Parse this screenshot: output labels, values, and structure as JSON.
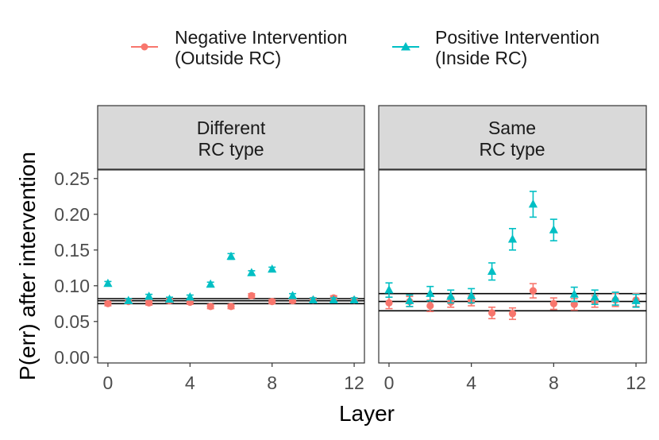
{
  "chart_data": {
    "type": "scatter",
    "xlabel": "Layer",
    "ylabel": "P(err) after intervention",
    "xlim": [
      -0.5,
      12.5
    ],
    "ylim": [
      -0.008,
      0.262
    ],
    "x_ticks": [
      0,
      4,
      8,
      12
    ],
    "x_tick_labels": [
      "0",
      "4",
      "8",
      "12"
    ],
    "y_ticks": [
      0.0,
      0.05,
      0.1,
      0.15,
      0.2,
      0.25
    ],
    "y_tick_labels": [
      "0.00",
      "0.05",
      "0.10",
      "0.15",
      "0.20",
      "0.25"
    ],
    "legend": {
      "position": "top",
      "entries": [
        {
          "line1": "Negative Intervention",
          "line2": "(Outside RC)",
          "marker": "circle",
          "color": "#F8766D"
        },
        {
          "line1": "Positive Intervention",
          "line2": "(Inside RC)",
          "marker": "triangle",
          "color": "#00BFC4"
        }
      ]
    },
    "facets": [
      {
        "title_line1": "Different",
        "title_line2": "RC type",
        "hlines": [
          0.075,
          0.079,
          0.082
        ],
        "series": [
          {
            "name": "Negative Intervention (Outside RC)",
            "x": [
              0,
              1,
              2,
              3,
              4,
              5,
              6,
              7,
              8,
              9,
              10,
              11,
              12
            ],
            "y": [
              0.075,
              0.078,
              0.076,
              0.079,
              0.077,
              0.071,
              0.071,
              0.086,
              0.078,
              0.079,
              0.08,
              0.083,
              0.08
            ],
            "err": [
              0.003,
              0.003,
              0.003,
              0.003,
              0.003,
              0.003,
              0.003,
              0.003,
              0.003,
              0.003,
              0.003,
              0.003,
              0.003
            ]
          },
          {
            "name": "Positive Intervention (Inside RC)",
            "x": [
              0,
              1,
              2,
              3,
              4,
              5,
              6,
              7,
              8,
              9,
              10,
              11,
              12
            ],
            "y": [
              0.103,
              0.079,
              0.085,
              0.081,
              0.084,
              0.102,
              0.141,
              0.118,
              0.123,
              0.086,
              0.08,
              0.08,
              0.08
            ],
            "err": [
              0.003,
              0.003,
              0.003,
              0.003,
              0.003,
              0.003,
              0.004,
              0.003,
              0.003,
              0.003,
              0.003,
              0.003,
              0.003
            ]
          }
        ]
      },
      {
        "title_line1": "Same",
        "title_line2": "RC type",
        "hlines": [
          0.065,
          0.078,
          0.089
        ],
        "series": [
          {
            "name": "Negative Intervention (Outside RC)",
            "x": [
              0,
              1,
              2,
              3,
              4,
              5,
              6,
              7,
              8,
              9,
              10,
              11,
              12
            ],
            "y": [
              0.076,
              0.078,
              0.072,
              0.077,
              0.079,
              0.062,
              0.061,
              0.093,
              0.075,
              0.074,
              0.078,
              0.08,
              0.08
            ],
            "err": [
              0.008,
              0.007,
              0.008,
              0.007,
              0.007,
              0.008,
              0.008,
              0.01,
              0.008,
              0.008,
              0.008,
              0.009,
              0.009
            ]
          },
          {
            "name": "Positive Intervention (Inside RC)",
            "x": [
              0,
              1,
              2,
              3,
              4,
              5,
              6,
              7,
              8,
              9,
              10,
              11,
              12
            ],
            "y": [
              0.094,
              0.079,
              0.089,
              0.085,
              0.086,
              0.12,
              0.165,
              0.214,
              0.178,
              0.088,
              0.084,
              0.082,
              0.079
            ],
            "err": [
              0.01,
              0.008,
              0.01,
              0.009,
              0.01,
              0.012,
              0.015,
              0.018,
              0.015,
              0.01,
              0.01,
              0.009,
              0.009
            ]
          }
        ]
      }
    ]
  }
}
